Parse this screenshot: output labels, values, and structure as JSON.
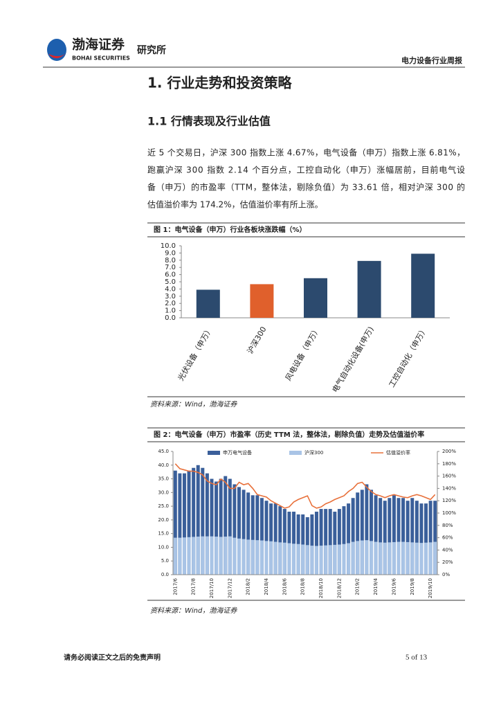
{
  "header": {
    "logo_cn": "渤海证券",
    "logo_en": "BOHAI SECURITIES",
    "institute": "研究所",
    "report_type": "电力设备行业周报"
  },
  "heading": "1. 行业走势和投资策略",
  "subheading": "1.1 行情表现及行业估值",
  "paragraph": [
    "近 5 个交易日，沪深 300 指数上涨 4.67%，电气设备（申万）指数上涨 6.81%，",
    "跑赢沪深 300 指数 2.14 个百分点，工控自动化（申万）涨幅居前，目前电气设",
    "备（申万）的市盈率（TTM，整体法，剔除负值）为 33.61 倍，相对沪深 300 的",
    "估值溢价率为 174.2%，估值溢价率有所上涨。"
  ],
  "chart_data": [
    {
      "type": "bar",
      "title": "图 1：电气设备（申万）行业各板块涨跌幅（%）",
      "source": "资料来源：Wind，渤海证券",
      "categories": [
        "光伏设备（申万）",
        "沪深300",
        "风电设备（申万）",
        "电气自动化设备(申万)",
        "工控自动化（申万）"
      ],
      "values": [
        3.9,
        4.67,
        5.5,
        7.9,
        8.9
      ],
      "colors": [
        "#2c4a6e",
        "#e0602c",
        "#2c4a6e",
        "#2c4a6e",
        "#2c4a6e"
      ],
      "ylim": [
        0,
        10
      ],
      "yticks": [
        {
          "value": 0,
          "label": "0.0"
        },
        {
          "value": 1,
          "label": "1.0"
        },
        {
          "value": 2,
          "label": "2.0"
        },
        {
          "value": 3,
          "label": "3.0"
        },
        {
          "value": 4,
          "label": "4.0"
        },
        {
          "value": 5,
          "label": "5.0"
        },
        {
          "value": 6,
          "label": "6.0"
        },
        {
          "value": 7,
          "label": "7.0"
        },
        {
          "value": 8,
          "label": "8.0"
        },
        {
          "value": 9,
          "label": "9.0"
        },
        {
          "value": 10,
          "label": "10.0"
        }
      ]
    },
    {
      "type": "combo",
      "title": "图 2：电气设备（申万）市盈率（历史 TTM 法，整体法，剔除负值）走势及估值溢价率",
      "source": "资料来源：Wind，渤海证券",
      "categories": [
        "2017/6",
        null,
        null,
        null,
        "2017/8",
        null,
        null,
        null,
        "2017/10",
        null,
        null,
        null,
        "2017/12",
        null,
        null,
        null,
        "2018/2",
        null,
        null,
        null,
        "2018/4",
        null,
        null,
        null,
        "2018/6",
        null,
        null,
        null,
        "2018/8",
        null,
        null,
        null,
        "2018/10",
        null,
        null,
        null,
        "2018/12",
        null,
        null,
        null,
        "2019/2",
        null,
        null,
        null,
        "2019/4",
        null,
        null,
        null,
        "2019/6",
        null,
        null,
        null,
        "2019/8",
        null,
        null,
        null,
        "2019/10",
        null
      ],
      "series": [
        {
          "name": "申万电气设备",
          "type": "bar",
          "color": "#3a5f9a",
          "values": [
            38,
            37,
            37,
            38,
            39,
            40,
            39,
            37,
            35,
            34,
            35,
            36,
            35,
            33,
            32,
            31,
            30,
            29,
            29,
            28,
            27,
            26,
            26,
            25,
            24,
            23,
            23,
            22,
            22,
            21,
            22,
            23,
            24,
            24,
            24,
            23,
            24,
            25,
            26,
            28,
            30,
            31,
            33,
            31,
            29,
            28,
            27,
            28,
            29,
            28,
            28,
            27,
            28,
            27,
            26,
            26,
            27,
            27
          ]
        },
        {
          "name": "沪深300",
          "type": "bar",
          "color": "#a9c4e6",
          "values": [
            13.5,
            13.5,
            13.6,
            13.7,
            13.8,
            13.9,
            14,
            14,
            14,
            13.9,
            13.8,
            13.9,
            14,
            13.5,
            13.2,
            13,
            12.8,
            12.7,
            12.6,
            12.5,
            12.3,
            12.2,
            12,
            11.8,
            11.7,
            11.5,
            11.3,
            11.2,
            11,
            10.8,
            10.6,
            10.5,
            10.6,
            10.7,
            10.8,
            10.9,
            11,
            11.2,
            11.5,
            12,
            12.3,
            12.5,
            12.6,
            12.3,
            12,
            11.8,
            11.7,
            11.8,
            11.9,
            12,
            12,
            11.9,
            11.8,
            11.7,
            11.6,
            11.7,
            11.8,
            12
          ]
        },
        {
          "name": "估值溢价率",
          "type": "line",
          "axis": "y2",
          "color": "#e8703a",
          "values": [
            180,
            172,
            170,
            168,
            168,
            166,
            162,
            152,
            148,
            146,
            155,
            150,
            140,
            140,
            150,
            146,
            148,
            140,
            130,
            128,
            126,
            120,
            116,
            112,
            108,
            110,
            118,
            122,
            125,
            128,
            112,
            108,
            110,
            115,
            118,
            122,
            125,
            128,
            135,
            140,
            148,
            150,
            142,
            135,
            130,
            128,
            125,
            128,
            130,
            128,
            126,
            125,
            128,
            130,
            128,
            125,
            122,
            130
          ]
        }
      ],
      "ylim": [
        0,
        45
      ],
      "yticks": [
        {
          "value": 0,
          "label": "0.0"
        },
        {
          "value": 5,
          "label": "5.0"
        },
        {
          "value": 10,
          "label": "10.0"
        },
        {
          "value": 15,
          "label": "15.0"
        },
        {
          "value": 20,
          "label": "20.0"
        },
        {
          "value": 25,
          "label": "25.0"
        },
        {
          "value": 30,
          "label": "30.0"
        },
        {
          "value": 35,
          "label": "35.0"
        },
        {
          "value": 40,
          "label": "40.0"
        },
        {
          "value": 45,
          "label": "45.0"
        }
      ],
      "y2lim": [
        0,
        200
      ],
      "y2ticks": [
        {
          "value": 0,
          "label": "0%"
        },
        {
          "value": 20,
          "label": "20%"
        },
        {
          "value": 40,
          "label": "40%"
        },
        {
          "value": 60,
          "label": "60%"
        },
        {
          "value": 80,
          "label": "80%"
        },
        {
          "value": 100,
          "label": "100%"
        },
        {
          "value": 120,
          "label": "120%"
        },
        {
          "value": 140,
          "label": "140%"
        },
        {
          "value": 160,
          "label": "160%"
        },
        {
          "value": 180,
          "label": "180%"
        },
        {
          "value": 200,
          "label": "200%"
        }
      ]
    }
  ],
  "footer": {
    "disclaimer": "请务必阅读正文之后的免责声明",
    "page": "5 of 13"
  }
}
